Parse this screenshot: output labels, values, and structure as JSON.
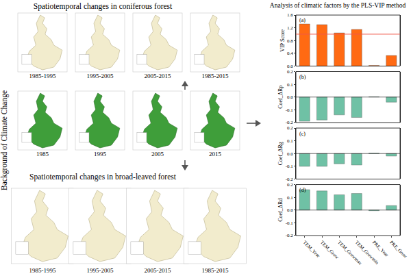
{
  "maps": {
    "side_label": "Background of Climate Change",
    "coniferous": {
      "title": "Spatiotemporal changes in coniferous forest",
      "periods": [
        "1985-1995",
        "1995-2005",
        "2005-2015",
        "1985-2015"
      ]
    },
    "baseline": {
      "years": [
        "1985",
        "1995",
        "2005",
        "2015"
      ]
    },
    "broadleaved": {
      "title": "Spatiotemporal changes in broad-leaved forest",
      "periods": [
        "1985-1995",
        "1995-2005",
        "2005-2015",
        "1985-2015"
      ]
    }
  },
  "chart_title": "Analysis of climatic factors by the PLS-VIP method",
  "chart_data": [
    {
      "type": "bar",
      "label": "(a)",
      "ylabel": "VIP Score",
      "color": "#ff6a13",
      "tick_labels": "y",
      "categories": [
        "TEM_Year",
        "TEM_Grow",
        "TEM_Growmax",
        "TEM_Growmin",
        "PRE_Year",
        "PRE_Grow"
      ],
      "values": [
        1.32,
        1.3,
        1.04,
        1.15,
        0.02,
        0.33
      ],
      "reference_line": {
        "value": 1,
        "color": "#f0584a"
      },
      "ylim": [
        0,
        1.6
      ],
      "yticks": [
        {
          "value": 0,
          "label": "0.0"
        },
        0.4,
        0.8,
        1.2,
        1.6
      ],
      "grid": false
    },
    {
      "type": "bar",
      "label": "(b)",
      "ylabel": "Coef_ΔRp",
      "color": "#6fc1a5",
      "tick_labels": "y",
      "categories": [
        "TEM_Year",
        "TEM_Grow",
        "TEM_Growmax",
        "TEM_Growmin",
        "PRE_Year",
        "PRE_Grow"
      ],
      "values": [
        -0.19,
        -0.18,
        -0.14,
        -0.16,
        0.003,
        -0.04
      ],
      "ylim": [
        -0.2,
        0.2
      ],
      "yticks": [
        -0.2,
        -0.1,
        {
          "value": 0,
          "label": "0.0"
        },
        0.1,
        0.2
      ],
      "grid": false
    },
    {
      "type": "bar",
      "label": "(c)",
      "ylabel": "Coef_ΔRg",
      "color": "#6fc1a5",
      "tick_labels": "y",
      "categories": [
        "TEM_Year",
        "TEM_Grow",
        "TEM_Growmax",
        "TEM_Growmin",
        "PRE_Year",
        "PRE_Grow"
      ],
      "values": [
        -0.1,
        -0.1,
        -0.08,
        -0.09,
        0.003,
        -0.02
      ],
      "ylim": [
        -0.2,
        0.2
      ],
      "yticks": [
        -0.2,
        -0.1,
        {
          "value": 0,
          "label": "0.0"
        },
        0.1,
        0.2
      ],
      "grid": false
    },
    {
      "type": "bar",
      "label": "(d)",
      "ylabel": "Coef_ΔRd",
      "color": "#6fc1a5",
      "categories": [
        "TEM_Year",
        "TEM_Grow",
        "TEM_Growmax",
        "TEM_Growmin",
        "PRE_Year",
        "PRE_Grow"
      ],
      "values": [
        0.16,
        0.15,
        0.12,
        0.13,
        -0.005,
        0.035
      ],
      "ylim": [
        -0.2,
        0.2
      ],
      "yticks": [
        -0.2,
        -0.1,
        {
          "value": 0,
          "label": "0.0"
        },
        0.1,
        0.2
      ],
      "grid": false
    }
  ]
}
